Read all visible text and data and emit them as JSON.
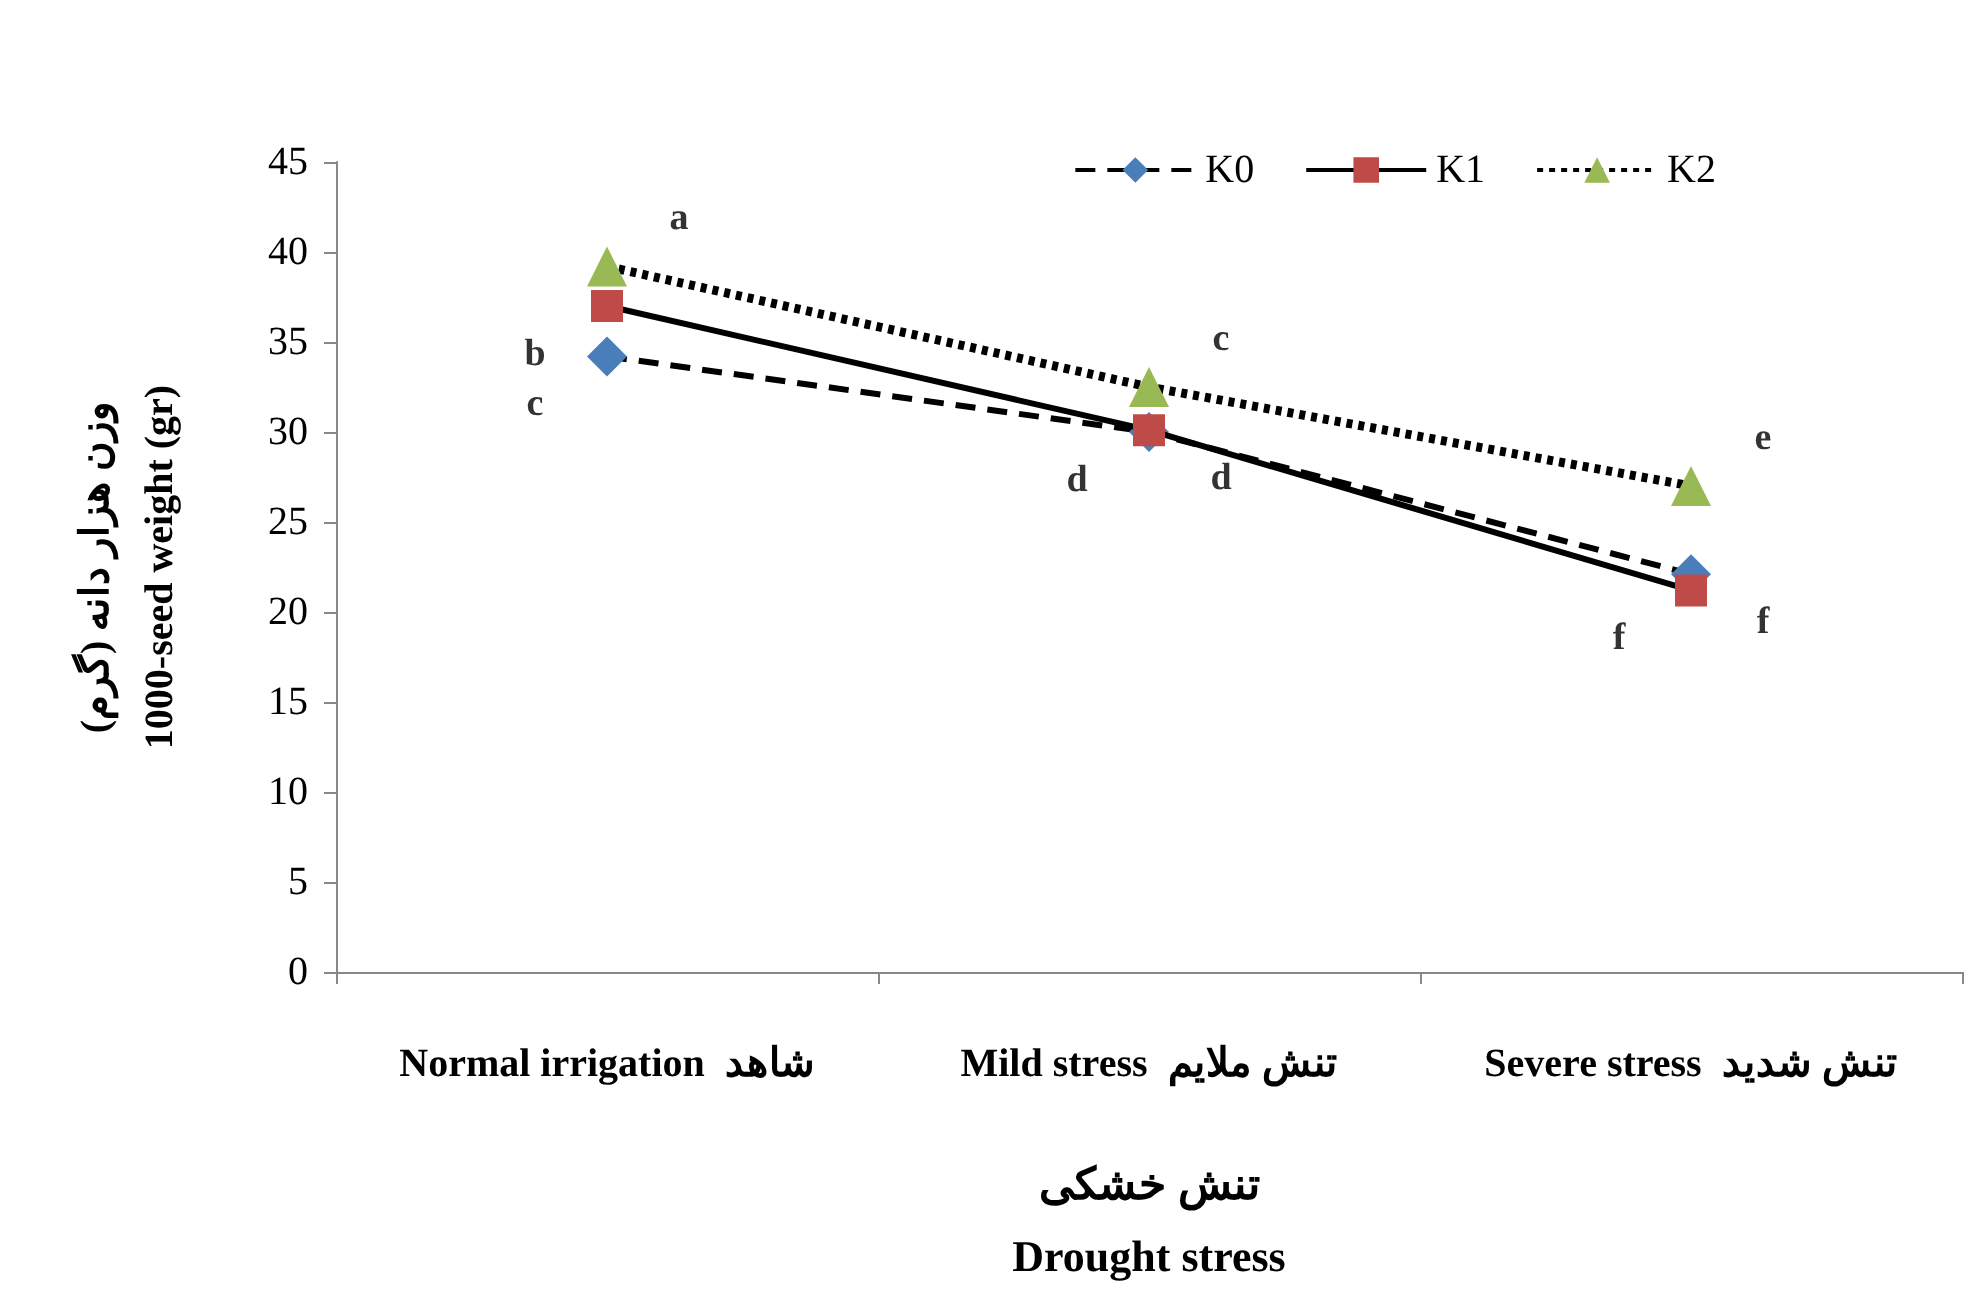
{
  "chart_data": {
    "type": "line",
    "xlabel": "تنش خشکی\nDrought stress",
    "ylabel": "وزن هزار دانه (گرم)\n1000-seed weight (gr)",
    "categories": [
      "Normal irrigation  شاهد",
      "Mild stress  تنش ملایم",
      "Severe stress  تنش شدید"
    ],
    "series": [
      {
        "name": "K0",
        "color": "#4a7ebb",
        "marker": "diamond",
        "line_style": "dashed",
        "values": [
          34.2,
          30,
          22.1
        ]
      },
      {
        "name": "K1",
        "color": "#be4b48",
        "marker": "square",
        "line_style": "solid",
        "values": [
          37,
          30.1,
          21.2
        ]
      },
      {
        "name": "K2",
        "color": "#98b954",
        "marker": "triangle",
        "line_style": "dotted",
        "values": [
          39.2,
          32.5,
          27
        ]
      }
    ],
    "ylim": [
      0,
      45
    ],
    "yticks": [
      0,
      5,
      10,
      15,
      20,
      25,
      30,
      35,
      40,
      45
    ],
    "grid": false,
    "legend": "top right",
    "annotations": [
      {
        "text": "a",
        "x": "Normal irrigation  شاهد",
        "y": 39.2
      },
      {
        "text": "b",
        "x": "Normal irrigation  شاهد",
        "y": 37
      },
      {
        "text": "c",
        "x": "Mild stress  تنش ملایم",
        "y": 32.5
      },
      {
        "text": "c",
        "x": "Normal irrigation  شاهد",
        "y": 34.2
      },
      {
        "text": "d",
        "x": "Mild stress  تنش ملایم",
        "y": 30.1
      },
      {
        "text": "d",
        "x": "Mild stress  تنش ملایم",
        "y": 30
      },
      {
        "text": "e",
        "x": "Severe stress  تنش شدید",
        "y": 27
      },
      {
        "text": "f",
        "x": "Severe stress  تنش شدید",
        "y": 21.2
      },
      {
        "text": "f",
        "x": "Severe stress  تنش شدید",
        "y": 22.1
      }
    ]
  }
}
